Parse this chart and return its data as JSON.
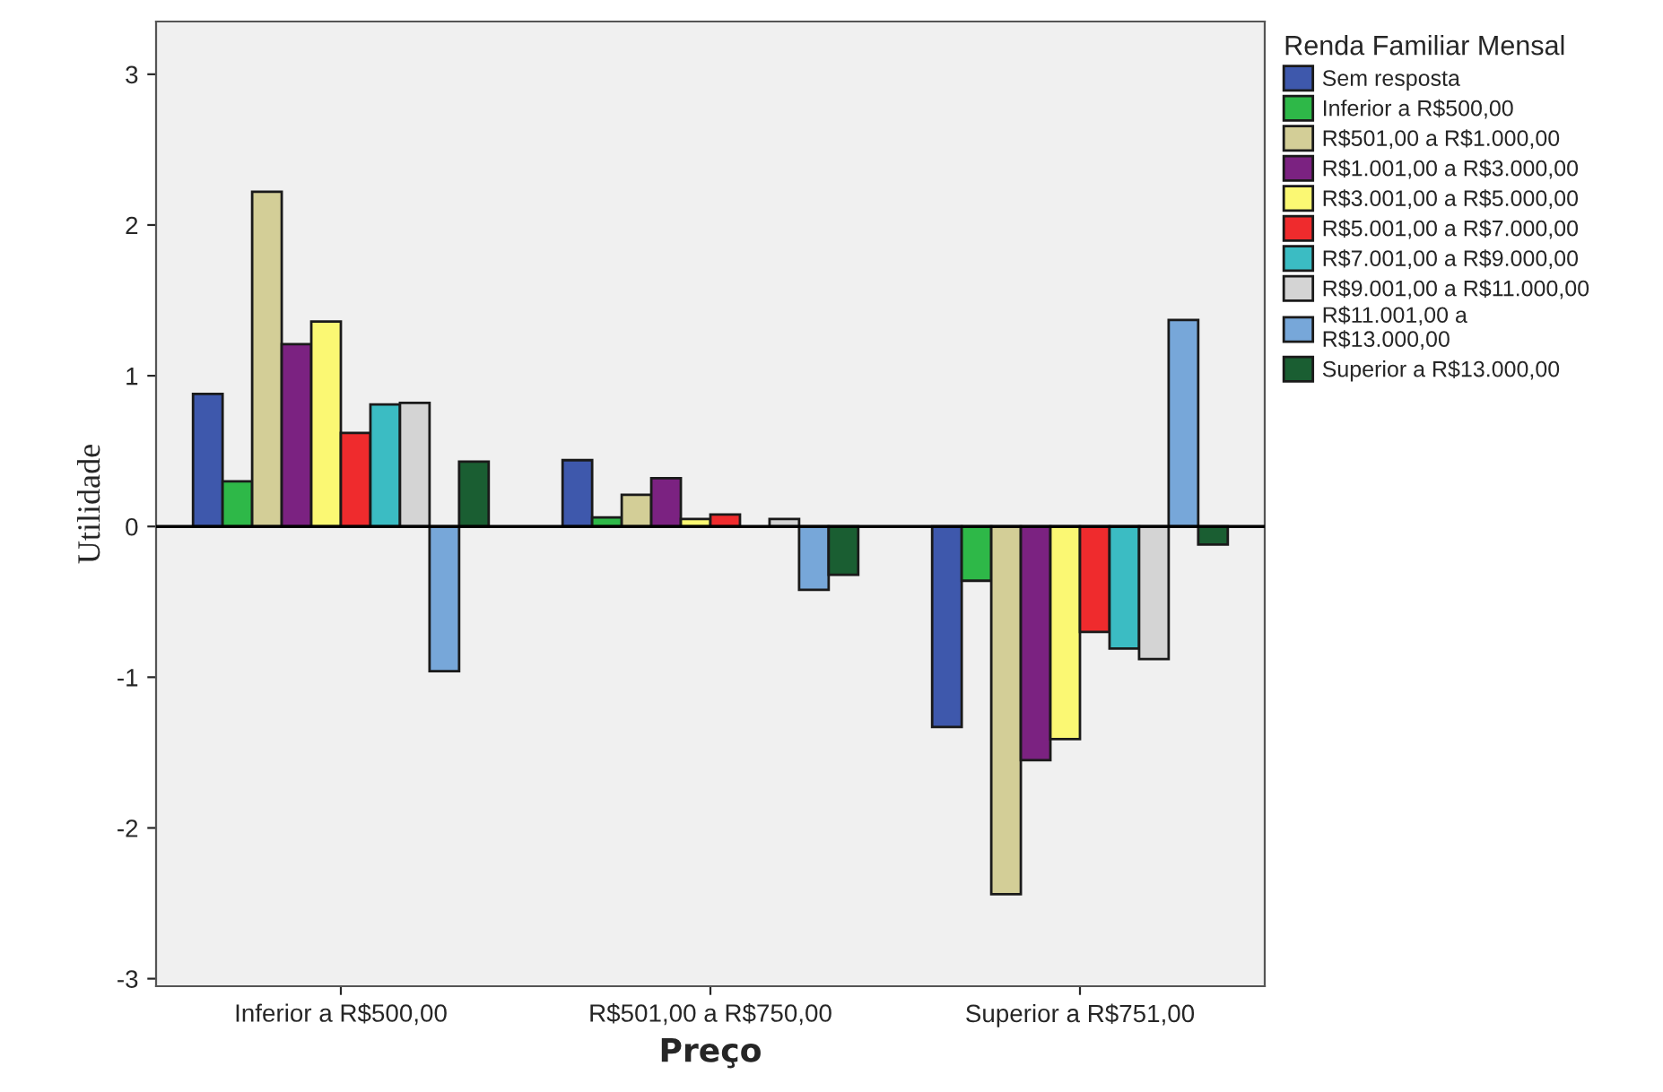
{
  "chart_data": {
    "type": "bar",
    "xlabel": "Preço",
    "ylabel": "Utilidade",
    "legend_title": "Renda Familiar Mensal",
    "categories": [
      "Inferior a R$500,00",
      "R$501,00 a R$750,00",
      "Superior a R$751,00"
    ],
    "series": [
      {
        "name": "Sem resposta",
        "color": "#3e58ac",
        "values": [
          0.88,
          0.44,
          -1.33
        ]
      },
      {
        "name": "Inferior a R$500,00",
        "color": "#2eb848",
        "values": [
          0.3,
          0.06,
          -0.36
        ]
      },
      {
        "name": "R$501,00 a R$1.000,00",
        "color": "#d3ce97",
        "values": [
          2.22,
          0.21,
          -2.44
        ]
      },
      {
        "name": "R$1.001,00 a R$3.000,00",
        "color": "#7b2281",
        "values": [
          1.21,
          0.32,
          -1.55
        ]
      },
      {
        "name": "R$3.001,00 a R$5.000,00",
        "color": "#fbf873",
        "values": [
          1.36,
          0.05,
          -1.41
        ]
      },
      {
        "name": "R$5.001,00 a R$7.000,00",
        "color": "#ef2b2d",
        "values": [
          0.62,
          0.08,
          -0.7
        ]
      },
      {
        "name": "R$7.001,00 a R$9.000,00",
        "color": "#3bbcc3",
        "values": [
          0.81,
          null,
          -0.81
        ]
      },
      {
        "name": "R$9.001,00 a R$11.000,00",
        "color": "#d4d4d4",
        "values": [
          0.82,
          0.05,
          -0.88
        ]
      },
      {
        "name": "R$11.001,00 a\nR$13.000,00",
        "color": "#77a7d9",
        "values": [
          -0.96,
          -0.42,
          1.37
        ]
      },
      {
        "name": "Superior a R$13.000,00",
        "color": "#1a5e32",
        "values": [
          0.43,
          -0.32,
          -0.12
        ]
      }
    ],
    "ylim": [
      -3.05,
      3.35
    ],
    "yticks": [
      -3,
      -2,
      -1,
      0,
      1,
      2,
      3
    ],
    "ref_lines": [
      {
        "axis": "y",
        "value": 0,
        "color": "#000000"
      }
    ],
    "grid": false,
    "legend": "right"
  }
}
